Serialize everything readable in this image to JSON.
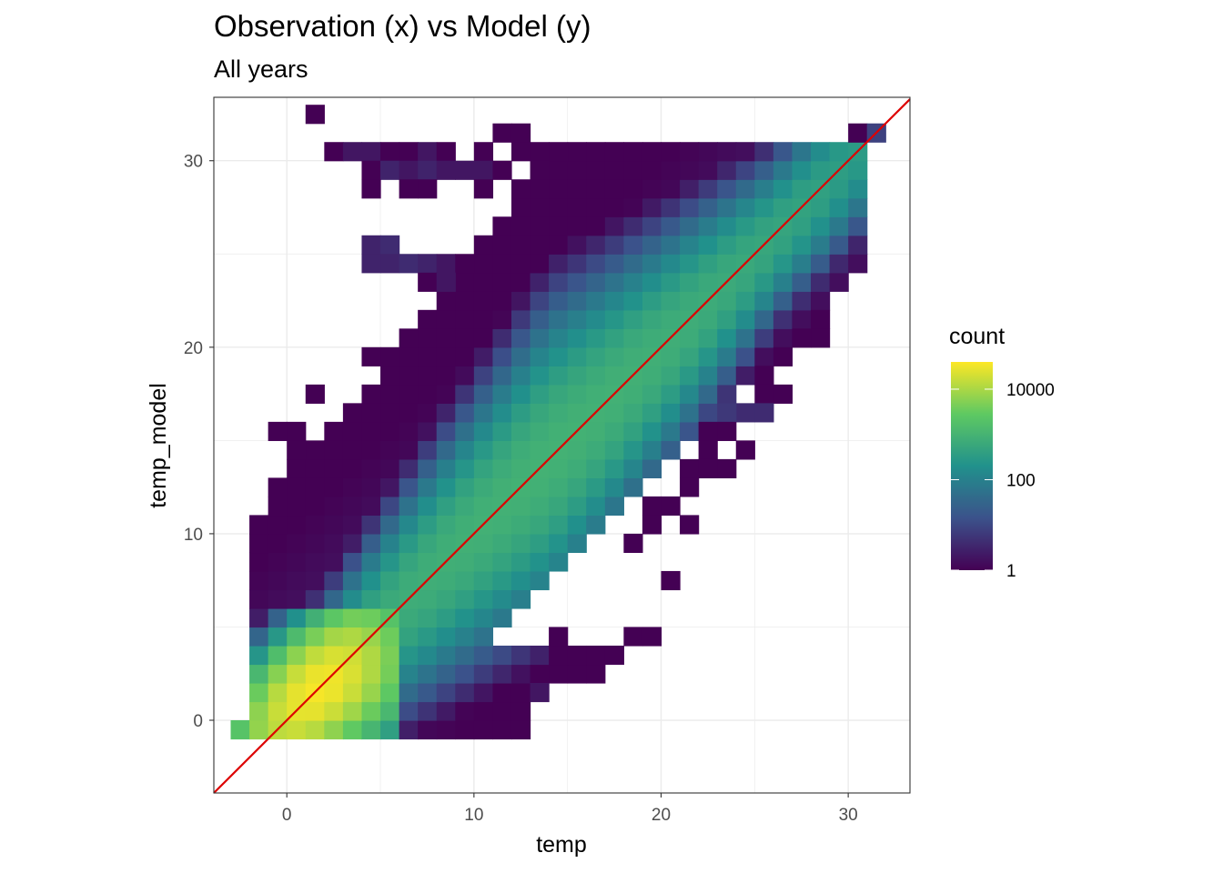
{
  "chart_data": {
    "type": "heatmap",
    "title": "Observation (x) vs Model (y)",
    "subtitle": "All years",
    "xlabel": "temp",
    "ylabel": "temp_model",
    "xlim": [
      -3.9,
      33.3
    ],
    "ylim": [
      -3.9,
      33.4
    ],
    "x_ticks": [
      0,
      10,
      20,
      30
    ],
    "y_ticks": [
      0,
      10,
      20,
      30
    ],
    "grid": true,
    "bin_width": 1,
    "color_scale": {
      "name": "count",
      "type": "log10",
      "palette": [
        "#440154",
        "#3b528b",
        "#21918c",
        "#5ec962",
        "#fde725"
      ],
      "min": 1,
      "max": 40000,
      "breaks": [
        1,
        100,
        10000
      ],
      "labels": [
        "1",
        "100",
        "10000"
      ]
    },
    "legend_position": "right",
    "reference_line": {
      "label": "y = x",
      "color": "#dd0000",
      "slope": 1,
      "intercept": 0
    },
    "isolated_cells": [
      {
        "x": 1.5,
        "y": 32.5,
        "count": 1
      },
      {
        "x": 11.5,
        "y": 31.5,
        "count": 1
      },
      {
        "x": 12.5,
        "y": 31.5,
        "count": 1
      },
      {
        "x": 2.5,
        "y": 30.5,
        "count": 1
      },
      {
        "x": 3.5,
        "y": 30.5,
        "count": 2
      },
      {
        "x": 4.5,
        "y": 30.5,
        "count": 2
      },
      {
        "x": 5.5,
        "y": 30.5,
        "count": 1
      },
      {
        "x": 6.5,
        "y": 30.5,
        "count": 1
      },
      {
        "x": 7.5,
        "y": 30.5,
        "count": 2
      },
      {
        "x": 8.5,
        "y": 30.5,
        "count": 1
      },
      {
        "x": 10.5,
        "y": 30.5,
        "count": 1
      },
      {
        "x": 12.5,
        "y": 30.5,
        "count": 1
      },
      {
        "x": 13.5,
        "y": 30.5,
        "count": 1
      },
      {
        "x": 14.5,
        "y": 30.5,
        "count": 1
      },
      {
        "x": 15.5,
        "y": 30.5,
        "count": 1
      },
      {
        "x": 16.5,
        "y": 30.5,
        "count": 2
      },
      {
        "x": 17.5,
        "y": 30.5,
        "count": 1
      },
      {
        "x": 19.5,
        "y": 30.5,
        "count": 1
      },
      {
        "x": 4.5,
        "y": 29.5,
        "count": 1
      },
      {
        "x": 5.5,
        "y": 29.5,
        "count": 3
      },
      {
        "x": 6.5,
        "y": 29.5,
        "count": 2
      },
      {
        "x": 7.5,
        "y": 29.5,
        "count": 3
      },
      {
        "x": 8.5,
        "y": 29.5,
        "count": 2
      },
      {
        "x": 9.5,
        "y": 29.5,
        "count": 2
      },
      {
        "x": 10.5,
        "y": 29.5,
        "count": 2
      },
      {
        "x": 11.5,
        "y": 29.5,
        "count": 1
      },
      {
        "x": 13.5,
        "y": 29.5,
        "count": 1
      },
      {
        "x": 14.5,
        "y": 29.5,
        "count": 1
      },
      {
        "x": 4.5,
        "y": 28.5,
        "count": 1
      },
      {
        "x": 6.5,
        "y": 28.5,
        "count": 1
      },
      {
        "x": 7.5,
        "y": 28.5,
        "count": 1
      },
      {
        "x": 10.5,
        "y": 28.5,
        "count": 1
      },
      {
        "x": 12.5,
        "y": 28.5,
        "count": 1
      },
      {
        "x": 4.5,
        "y": 25.5,
        "count": 3
      },
      {
        "x": 5.5,
        "y": 25.5,
        "count": 4
      },
      {
        "x": 4.5,
        "y": 24.5,
        "count": 3
      },
      {
        "x": 5.5,
        "y": 24.5,
        "count": 3
      },
      {
        "x": 6.5,
        "y": 24.5,
        "count": 4
      },
      {
        "x": 7.5,
        "y": 24.5,
        "count": 3
      },
      {
        "x": 8.5,
        "y": 24.5,
        "count": 2
      },
      {
        "x": 9.5,
        "y": 24.5,
        "count": 1
      },
      {
        "x": 10.5,
        "y": 24.5,
        "count": 1
      },
      {
        "x": 7.5,
        "y": 23.5,
        "count": 1
      },
      {
        "x": 8.5,
        "y": 23.5,
        "count": 2
      },
      {
        "x": 9.5,
        "y": 23.5,
        "count": 1
      },
      {
        "x": 10.5,
        "y": 23.5,
        "count": 1
      },
      {
        "x": 9.5,
        "y": 21.5,
        "count": 1
      },
      {
        "x": 10.5,
        "y": 21.5,
        "count": 1
      },
      {
        "x": 4.5,
        "y": 19.5,
        "count": 1
      },
      {
        "x": 5.5,
        "y": 19.5,
        "count": 4
      },
      {
        "x": 6.5,
        "y": 19.5,
        "count": 6
      },
      {
        "x": 7.5,
        "y": 19.5,
        "count": 3
      },
      {
        "x": 8.5,
        "y": 19.5,
        "count": 2
      },
      {
        "x": 5.5,
        "y": 18.5,
        "count": 1
      },
      {
        "x": 6.5,
        "y": 18.5,
        "count": 5
      },
      {
        "x": 7.5,
        "y": 18.5,
        "count": 8
      },
      {
        "x": 1.5,
        "y": 17.5,
        "count": 1
      },
      {
        "x": 6.5,
        "y": 17.5,
        "count": 1
      },
      {
        "x": 7.5,
        "y": 17.5,
        "count": 1
      },
      {
        "x": -0.5,
        "y": 15.5,
        "count": 1
      },
      {
        "x": 0.5,
        "y": 15.5,
        "count": 1
      },
      {
        "x": 0.5,
        "y": 14.5,
        "count": 1
      },
      {
        "x": 1.5,
        "y": 14.5,
        "count": 2
      },
      {
        "x": -0.5,
        "y": 12.5,
        "count": 1
      },
      {
        "x": 0.5,
        "y": 12.5,
        "count": 2
      },
      {
        "x": 1.5,
        "y": 12.5,
        "count": 4
      },
      {
        "x": -1.5,
        "y": 2.5,
        "count": 1
      },
      {
        "x": 17.5,
        "y": 28.5,
        "count": 1
      },
      {
        "x": 18.5,
        "y": 28.5,
        "count": 4
      },
      {
        "x": 14.5,
        "y": 26.5,
        "count": 1
      },
      {
        "x": 13.5,
        "y": 25.5,
        "count": 1
      },
      {
        "x": 13.5,
        "y": 24.5,
        "count": 1
      },
      {
        "x": 20.5,
        "y": 29.5,
        "count": 1
      },
      {
        "x": 21.5,
        "y": 29.5,
        "count": 1
      },
      {
        "x": 22.5,
        "y": 29.5,
        "count": 1
      },
      {
        "x": 23.5,
        "y": 29.5,
        "count": 4
      },
      {
        "x": 24.5,
        "y": 29.5,
        "count": 5
      },
      {
        "x": 25.5,
        "y": 30.5,
        "count": 5
      },
      {
        "x": 26.5,
        "y": 30.5,
        "count": 1
      },
      {
        "x": 30.5,
        "y": 31.5,
        "count": 1
      },
      {
        "x": 31.5,
        "y": 31.5,
        "count": 8
      },
      {
        "x": 30.5,
        "y": 28.5,
        "count": 3
      },
      {
        "x": 30.5,
        "y": 26.5,
        "count": 4
      },
      {
        "x": 30.5,
        "y": 25.5,
        "count": 1
      },
      {
        "x": 28.5,
        "y": 21.5,
        "count": 1
      },
      {
        "x": 27.5,
        "y": 20.5,
        "count": 1
      },
      {
        "x": 28.5,
        "y": 20.5,
        "count": 1
      },
      {
        "x": 25.5,
        "y": 19.5,
        "count": 1
      },
      {
        "x": 26.5,
        "y": 19.5,
        "count": 1
      },
      {
        "x": 25.5,
        "y": 18.5,
        "count": 1
      },
      {
        "x": 26.5,
        "y": 17.5,
        "count": 1
      },
      {
        "x": 25.5,
        "y": 17.5,
        "count": 1
      },
      {
        "x": 24.5,
        "y": 16.5,
        "count": 4
      },
      {
        "x": 25.5,
        "y": 16.5,
        "count": 4
      },
      {
        "x": 22.5,
        "y": 15.5,
        "count": 1
      },
      {
        "x": 23.5,
        "y": 16.5,
        "count": 6
      },
      {
        "x": 23.5,
        "y": 15.5,
        "count": 1
      },
      {
        "x": 22.5,
        "y": 14.5,
        "count": 1
      },
      {
        "x": 24.5,
        "y": 14.5,
        "count": 1
      },
      {
        "x": 21.5,
        "y": 13.5,
        "count": 1
      },
      {
        "x": 22.5,
        "y": 13.5,
        "count": 1
      },
      {
        "x": 23.5,
        "y": 13.5,
        "count": 1
      },
      {
        "x": 21.5,
        "y": 12.5,
        "count": 1
      },
      {
        "x": 19.5,
        "y": 11.5,
        "count": 1
      },
      {
        "x": 20.5,
        "y": 11.5,
        "count": 1
      },
      {
        "x": 19.5,
        "y": 10.5,
        "count": 1
      },
      {
        "x": 21.5,
        "y": 10.5,
        "count": 1
      },
      {
        "x": 18.5,
        "y": 9.5,
        "count": 1
      },
      {
        "x": 20.5,
        "y": 7.5,
        "count": 1
      },
      {
        "x": 18.5,
        "y": 4.5,
        "count": 1
      },
      {
        "x": 19.5,
        "y": 4.5,
        "count": 1
      },
      {
        "x": 17.5,
        "y": 3.5,
        "count": 1
      },
      {
        "x": 15.5,
        "y": 2.5,
        "count": 1
      },
      {
        "x": 14.5,
        "y": 3.5,
        "count": 1
      },
      {
        "x": 14.5,
        "y": 4.5,
        "count": 1
      },
      {
        "x": 13.5,
        "y": 3.5,
        "count": 1
      },
      {
        "x": 12.5,
        "y": 2.5,
        "count": 1
      },
      {
        "x": 11.5,
        "y": 2.5,
        "count": 1
      },
      {
        "x": 10.5,
        "y": 2.5,
        "count": 1
      },
      {
        "x": 9.5,
        "y": 2.5,
        "count": 1
      },
      {
        "x": 11.5,
        "y": 1.5,
        "count": 1
      },
      {
        "x": 12.5,
        "y": 1.5,
        "count": 1
      },
      {
        "x": 13.5,
        "y": 1.5,
        "count": 2
      },
      {
        "x": 8.5,
        "y": 0.5,
        "count": 1
      },
      {
        "x": 9.5,
        "y": 0.5,
        "count": 1
      },
      {
        "x": 10.5,
        "y": 0.5,
        "count": 1
      },
      {
        "x": 11.5,
        "y": 0.5,
        "count": 1
      },
      {
        "x": 12.5,
        "y": 0.5,
        "count": 1
      }
    ]
  }
}
